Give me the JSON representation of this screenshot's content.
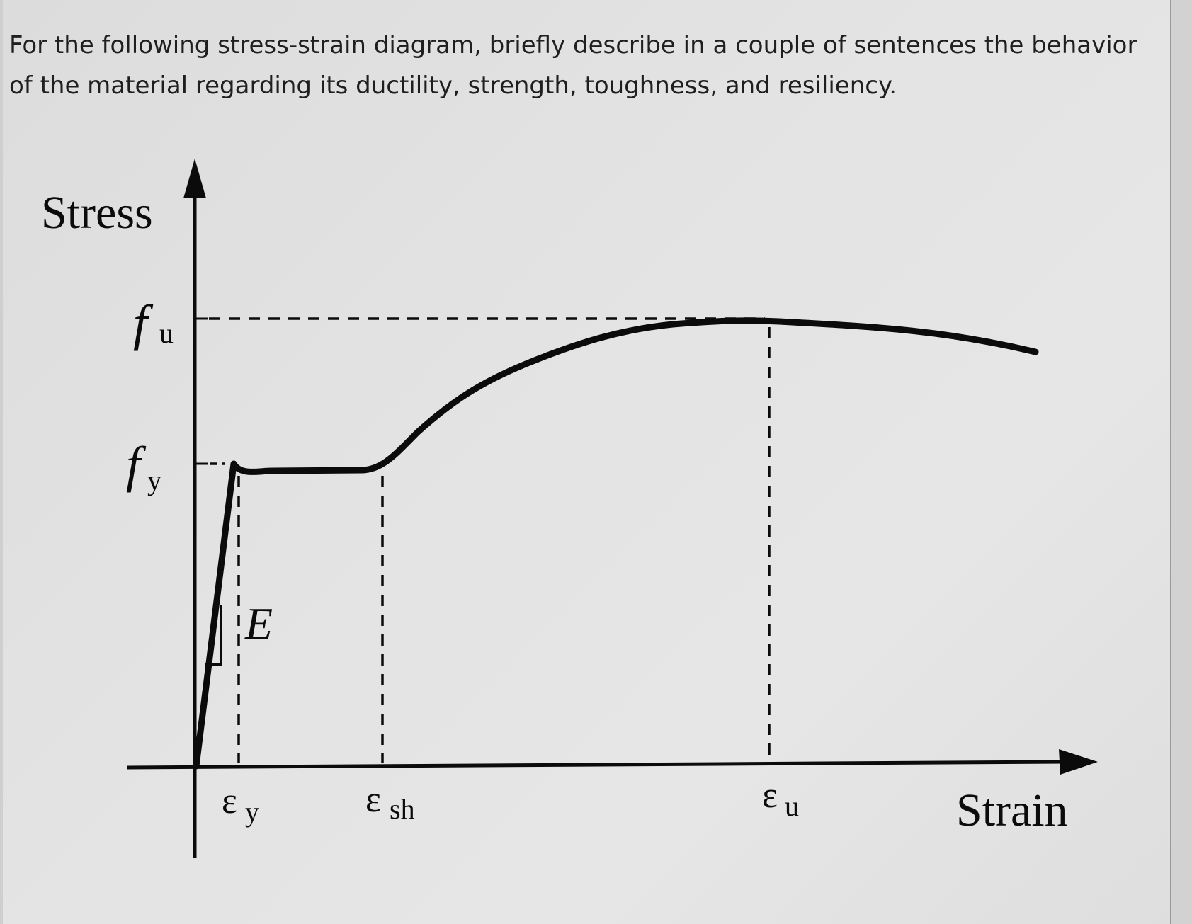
{
  "question": {
    "text": "For the following stress-strain diagram, briefly describe in a couple of sentences the behavior of the material regarding its ductility, strength, toughness, and resiliency."
  },
  "diagram": {
    "y_axis_label": "Stress",
    "x_axis_label": "Strain",
    "stress_levels": {
      "fu": {
        "symbol": "f",
        "subscript": "u"
      },
      "fy": {
        "symbol": "f",
        "subscript": "y"
      }
    },
    "strain_points": {
      "ey": {
        "symbol": "ε",
        "subscript": "y"
      },
      "esh": {
        "symbol": "ε",
        "subscript": "sh"
      },
      "eu": {
        "symbol": "ε",
        "subscript": "u"
      }
    },
    "modulus_label": "E",
    "line_color": "#0b0b0b"
  }
}
